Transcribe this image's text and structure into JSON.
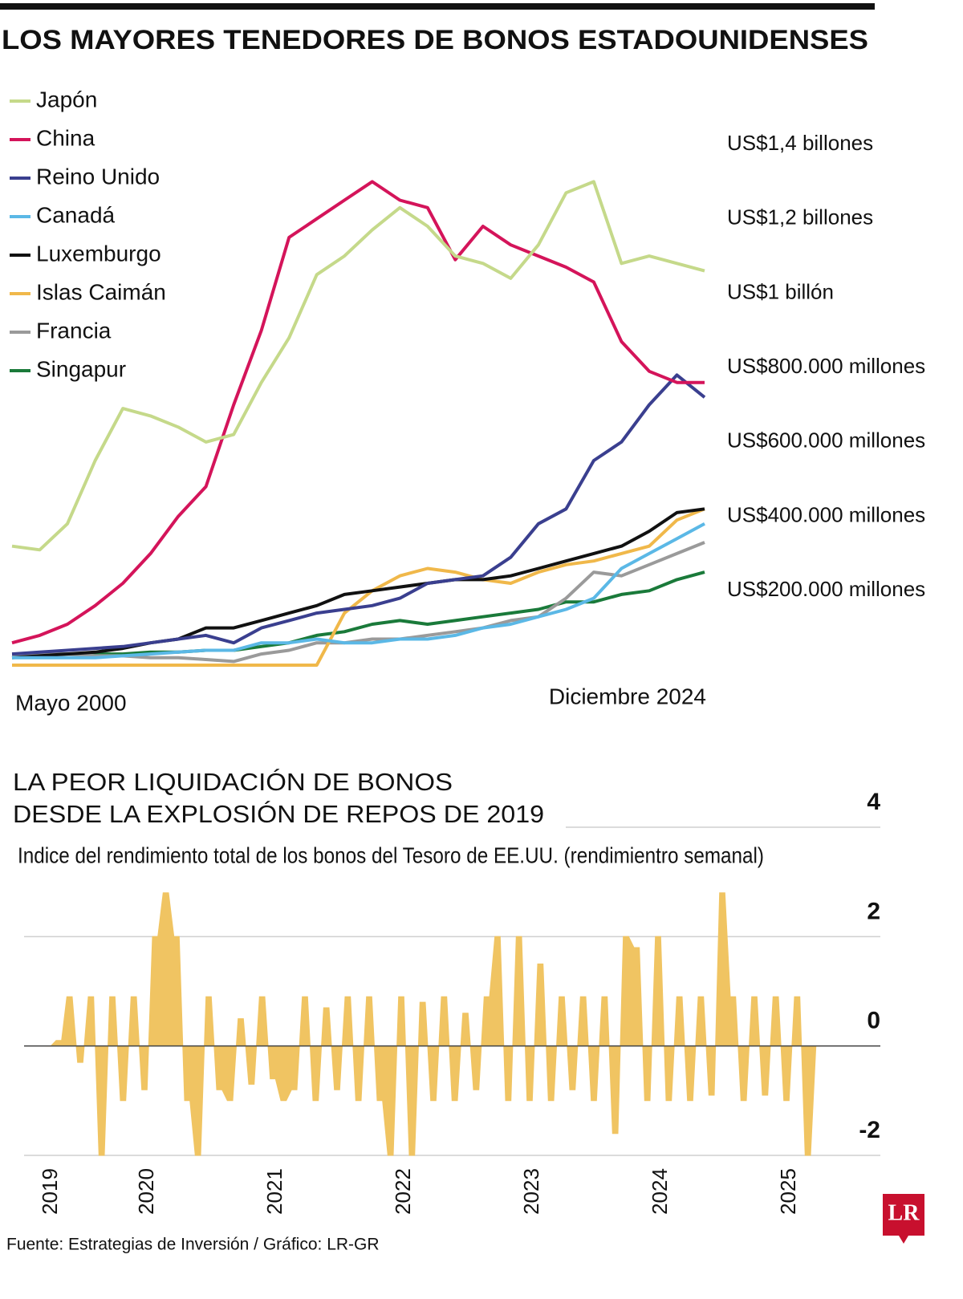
{
  "chart_data": [
    {
      "type": "line",
      "title": "LOS MAYORES TENEDORES DE BONOS ESTADOUNIDENSES",
      "categories": [
        "Mayo 2000",
        null,
        null,
        null,
        null,
        null,
        null,
        null,
        null,
        null,
        null,
        null,
        null,
        null,
        null,
        null,
        null,
        null,
        null,
        null,
        null,
        null,
        null,
        null,
        null,
        "Diciembre 2024"
      ],
      "series": [
        {
          "name": "Japón",
          "color": "#c5d98a",
          "values": [
            320,
            310,
            380,
            550,
            690,
            670,
            640,
            600,
            620,
            760,
            880,
            1050,
            1100,
            1170,
            1230,
            1180,
            1100,
            1080,
            1040,
            1130,
            1270,
            1300,
            1080,
            1100,
            1080,
            1060
          ]
        },
        {
          "name": "China",
          "color": "#d4145a",
          "values": [
            60,
            80,
            110,
            160,
            220,
            300,
            400,
            480,
            700,
            900,
            1150,
            1200,
            1250,
            1300,
            1250,
            1230,
            1090,
            1180,
            1130,
            1100,
            1070,
            1030,
            870,
            790,
            760,
            760
          ]
        },
        {
          "name": "Reino Unido",
          "color": "#3a3f8f",
          "values": [
            30,
            35,
            40,
            45,
            50,
            60,
            70,
            80,
            60,
            100,
            120,
            140,
            150,
            160,
            180,
            220,
            230,
            240,
            290,
            380,
            420,
            550,
            600,
            700,
            780,
            720
          ]
        },
        {
          "name": "Canadá",
          "color": "#5bb8e6",
          "values": [
            20,
            20,
            20,
            20,
            25,
            30,
            35,
            40,
            40,
            60,
            60,
            70,
            60,
            60,
            70,
            70,
            80,
            100,
            110,
            130,
            150,
            180,
            260,
            300,
            340,
            380
          ]
        },
        {
          "name": "Luxemburgo",
          "color": "#111111",
          "values": [
            20,
            25,
            30,
            35,
            45,
            60,
            70,
            100,
            100,
            120,
            140,
            160,
            190,
            200,
            210,
            220,
            230,
            230,
            240,
            260,
            280,
            300,
            320,
            360,
            410,
            420
          ]
        },
        {
          "name": "Islas Caimán",
          "color": "#f0b84a",
          "values": [
            0,
            0,
            0,
            0,
            0,
            0,
            0,
            0,
            0,
            0,
            0,
            0,
            140,
            200,
            240,
            260,
            250,
            230,
            220,
            250,
            270,
            280,
            300,
            320,
            390,
            420
          ]
        },
        {
          "name": "Francia",
          "color": "#9a9a9a",
          "values": [
            30,
            30,
            30,
            25,
            25,
            20,
            20,
            15,
            10,
            30,
            40,
            60,
            60,
            70,
            70,
            80,
            90,
            100,
            120,
            130,
            180,
            250,
            240,
            270,
            300,
            330
          ]
        },
        {
          "name": "Singapur",
          "color": "#1a7a3a",
          "values": [
            30,
            30,
            30,
            30,
            30,
            35,
            35,
            40,
            40,
            50,
            60,
            80,
            90,
            110,
            120,
            110,
            120,
            130,
            140,
            150,
            170,
            170,
            190,
            200,
            230,
            250
          ]
        }
      ],
      "ylim": [
        0,
        1400
      ],
      "yticks": [
        {
          "value": 1400,
          "label": "US$1,4 billones"
        },
        {
          "value": 1200,
          "label": "US$1,2 billones"
        },
        {
          "value": 1000,
          "label": "US$1 billón"
        },
        {
          "value": 800,
          "label": "US$800.000 millones"
        },
        {
          "value": 600,
          "label": "US$600.000 millones"
        },
        {
          "value": 400,
          "label": "US$400.000 millones"
        },
        {
          "value": 200,
          "label": "US$200.000 millones"
        }
      ],
      "legend": "top-left",
      "grid": false
    },
    {
      "type": "area",
      "title": [
        "LA PEOR LIQUIDACIÓN DE BONOS",
        "DESDE LA EXPLOSIÓN DE REPOS DE 2019"
      ],
      "subtitle": "Indice del rendimiento total de los bonos del Tesoro de EE.UU. (rendimientro semanal)",
      "color": "#f0c462",
      "categories": [
        "2019",
        null,
        null,
        null,
        null,
        null,
        null,
        null,
        null,
        "2020",
        null,
        null,
        null,
        null,
        null,
        null,
        null,
        null,
        null,
        null,
        null,
        "2021",
        null,
        null,
        null,
        null,
        null,
        null,
        null,
        null,
        null,
        null,
        null,
        "2022",
        null,
        null,
        null,
        null,
        null,
        null,
        null,
        null,
        null,
        null,
        null,
        "2023",
        null,
        null,
        null,
        null,
        null,
        null,
        null,
        null,
        null,
        null,
        null,
        "2024",
        null,
        null,
        null,
        null,
        null,
        null,
        null,
        null,
        null,
        null,
        null,
        "2025",
        null,
        null,
        null
      ],
      "values": [
        0.0,
        0.1,
        0.9,
        -0.3,
        0.9,
        -2.0,
        0.9,
        -1.0,
        0.9,
        -0.8,
        2.0,
        2.8,
        2.0,
        -1.0,
        -2.0,
        0.9,
        -0.8,
        -1.0,
        0.5,
        -0.7,
        0.9,
        -0.6,
        -1.0,
        -0.8,
        0.9,
        -1.0,
        0.7,
        -0.8,
        0.9,
        -1.0,
        0.9,
        -1.0,
        -2.0,
        0.9,
        -2.0,
        0.8,
        -1.0,
        0.9,
        -1.0,
        0.6,
        -0.8,
        0.9,
        2.0,
        -1.0,
        2.0,
        -1.0,
        1.5,
        -1.0,
        0.9,
        -0.8,
        0.9,
        -1.0,
        0.9,
        -1.6,
        2.0,
        1.8,
        -1.0,
        2.0,
        -1.0,
        0.9,
        -1.0,
        0.9,
        -0.9,
        2.8,
        0.9,
        -1.0,
        0.9,
        -0.9,
        0.9,
        -1.0,
        0.9,
        -2.0,
        0.0
      ],
      "ylim": [
        -2,
        4
      ],
      "yticks": [
        4,
        2,
        0,
        -2
      ],
      "grid": true
    }
  ],
  "source": "Fuente: Estrategias de Inversión / Gráfico: LR-GR",
  "logo": "LR"
}
